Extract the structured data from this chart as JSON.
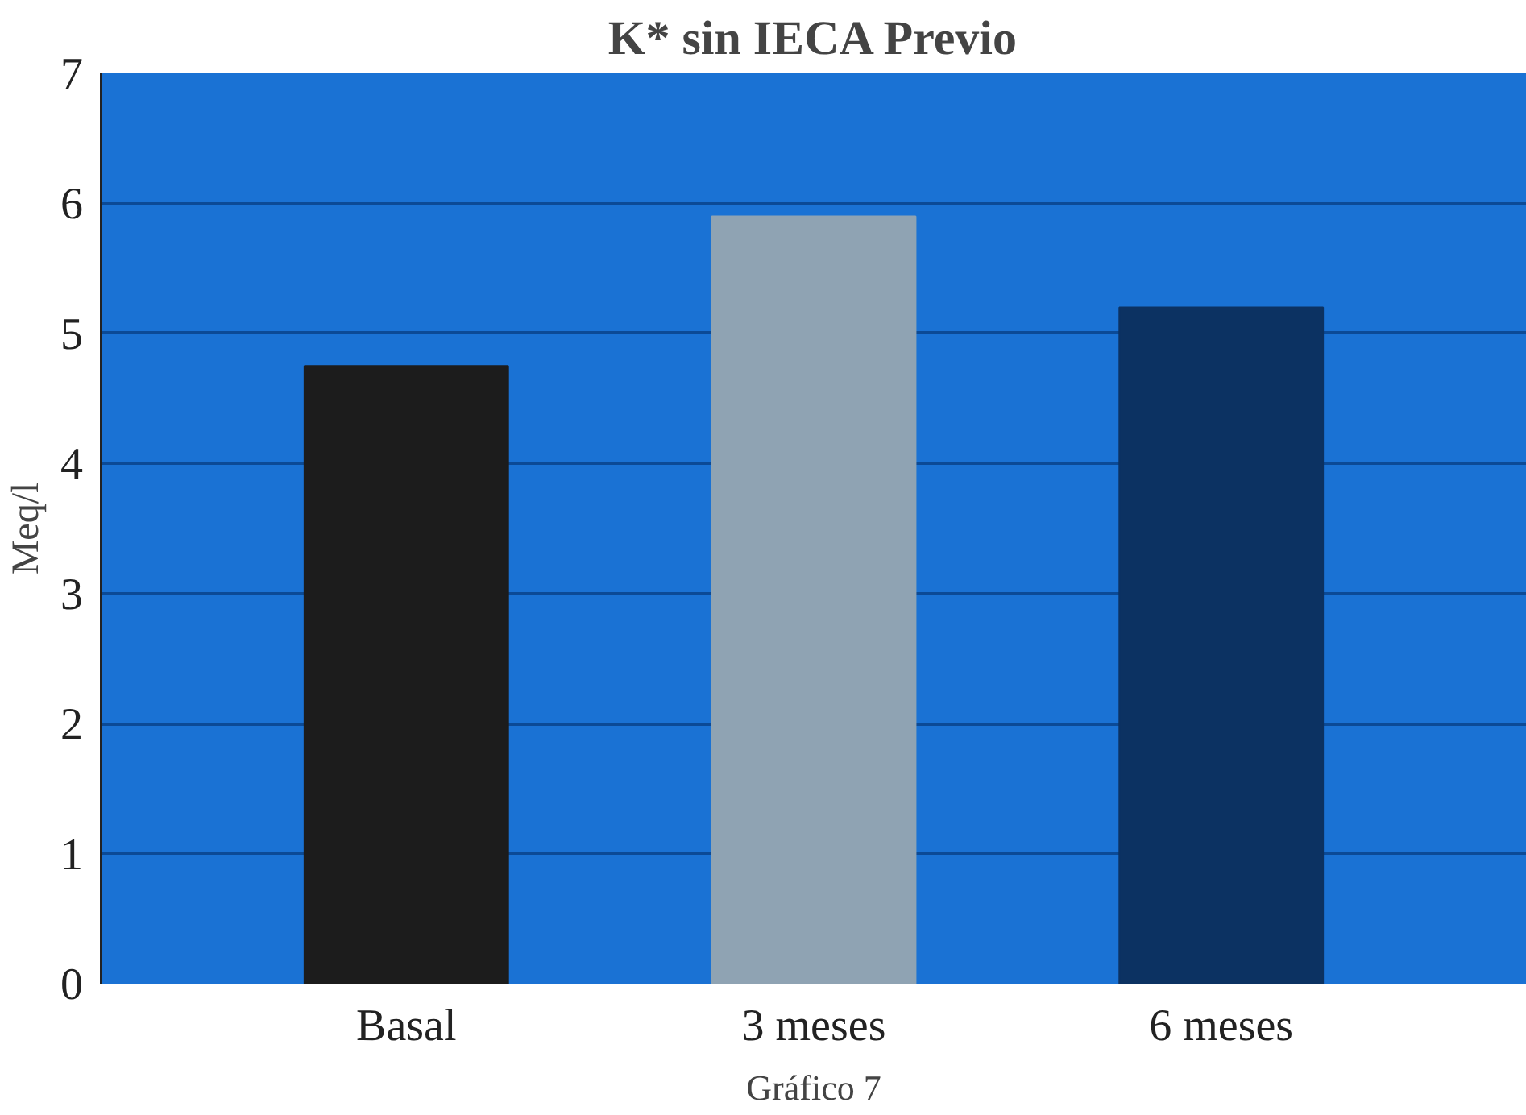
{
  "chart_data": {
    "type": "bar",
    "title": "K* sin IECA Previo",
    "ylabel": "Meq/l",
    "annotations": [
      "Gráfico 7"
    ],
    "categories": [
      "Basal",
      "3 meses",
      "6 meses"
    ],
    "values": [
      4.75,
      5.9,
      5.2
    ],
    "colors": [
      "#1c1c1c",
      "#8fa3b3",
      "#0c3262"
    ],
    "ylim": [
      0,
      7
    ],
    "yticks": [
      0,
      1,
      2,
      3,
      4,
      5,
      6,
      7
    ],
    "grid": "y"
  }
}
